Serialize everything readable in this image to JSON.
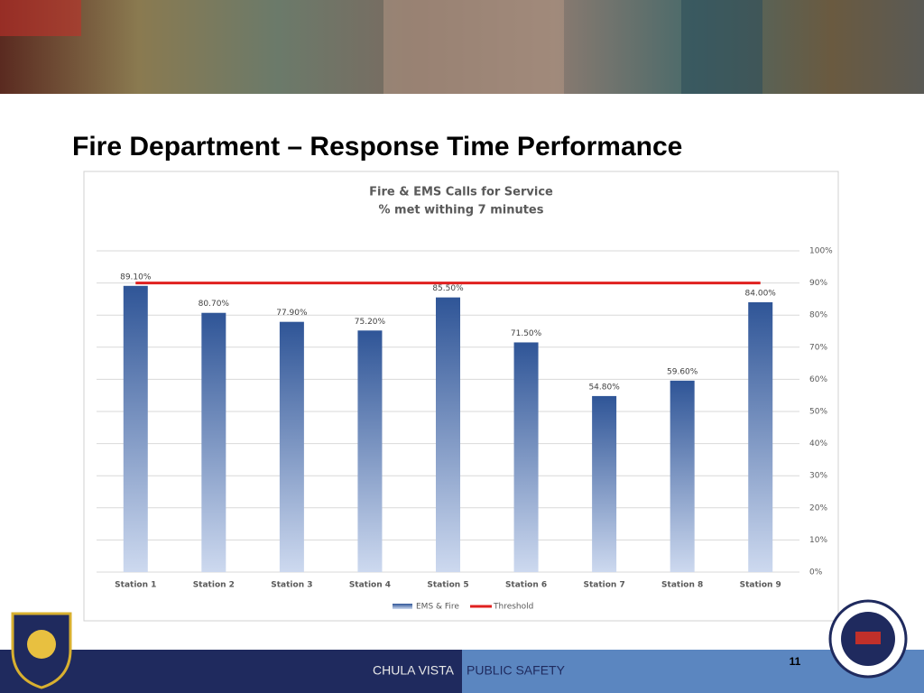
{
  "slide_title": "Fire Department – Response Time Performance",
  "footer": {
    "left": "CHULA VISTA",
    "right": "PUBLIC SAFETY"
  },
  "page_number": "11",
  "chart_data": {
    "type": "bar",
    "title": "Fire & EMS Calls for Service",
    "subtitle": "% met withing 7 minutes",
    "categories": [
      "Station 1",
      "Station 2",
      "Station 3",
      "Station 4",
      "Station 5",
      "Station 6",
      "Station 7",
      "Station 8",
      "Station 9"
    ],
    "series": [
      {
        "name": "EMS & Fire",
        "type": "bar",
        "color": "#2f5597",
        "values": [
          89.1,
          80.7,
          77.9,
          75.2,
          85.5,
          71.5,
          54.8,
          59.6,
          84.0
        ],
        "value_labels": [
          "89.10%",
          "80.70%",
          "77.90%",
          "75.20%",
          "85.50%",
          "71.50%",
          "54.80%",
          "59.60%",
          "84.00%"
        ]
      },
      {
        "name": "Threshold",
        "type": "line",
        "color": "#e0201f",
        "values": [
          90,
          90,
          90,
          90,
          90,
          90,
          90,
          90,
          90
        ]
      }
    ],
    "ylim": [
      0,
      100
    ],
    "yticks": [
      {
        "value": 0,
        "label": "0%"
      },
      {
        "value": 10,
        "label": "10%"
      },
      {
        "value": 20,
        "label": "20%"
      },
      {
        "value": 30,
        "label": "30%"
      },
      {
        "value": 40,
        "label": "40%"
      },
      {
        "value": 50,
        "label": "50%"
      },
      {
        "value": 60,
        "label": "60%"
      },
      {
        "value": 70,
        "label": "70%"
      },
      {
        "value": 80,
        "label": "80%"
      },
      {
        "value": 90,
        "label": "90%"
      },
      {
        "value": 100,
        "label": "100%"
      }
    ],
    "grid": true,
    "legend": "bottom"
  }
}
